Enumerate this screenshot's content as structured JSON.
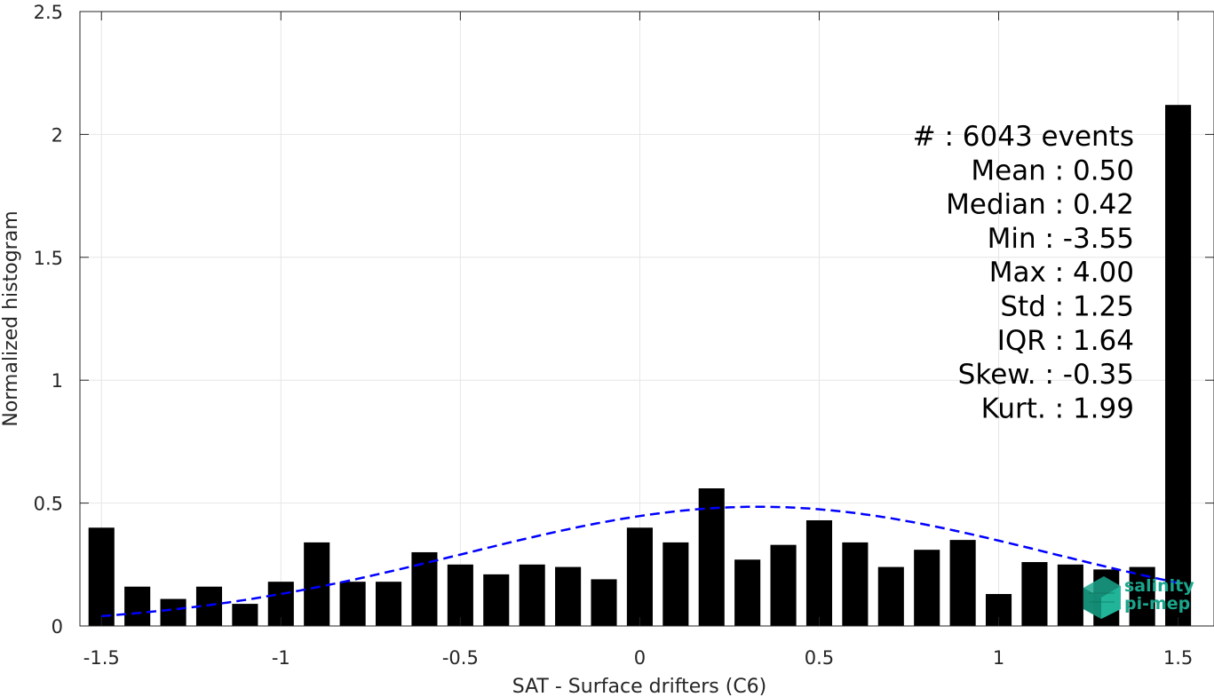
{
  "chart_data": {
    "type": "bar",
    "xlabel": "SAT - Surface drifters (C6)",
    "ylabel": "Normalized histogram",
    "xlim": [
      -1.56,
      1.6
    ],
    "ylim": [
      0,
      2.5
    ],
    "xticks": [
      -1.5,
      -1,
      -0.5,
      0,
      0.5,
      1,
      1.5
    ],
    "xtick_labels": [
      "-1.5",
      "-1",
      "-0.5",
      "0",
      "0.5",
      "1",
      "1.5"
    ],
    "yticks": [
      0,
      0.5,
      1,
      1.5,
      2,
      2.5
    ],
    "ytick_labels": [
      "0",
      "0.5",
      "1",
      "1.5",
      "2",
      "2.5"
    ],
    "grid": true,
    "bin_width": 0.1,
    "bar_color": "#000000",
    "x": [
      -1.5,
      -1.4,
      -1.3,
      -1.2,
      -1.1,
      -1.0,
      -0.9,
      -0.8,
      -0.7,
      -0.6,
      -0.5,
      -0.4,
      -0.3,
      -0.2,
      -0.1,
      0.0,
      0.1,
      0.2,
      0.3,
      0.4,
      0.5,
      0.6,
      0.7,
      0.8,
      0.9,
      1.0,
      1.1,
      1.2,
      1.3,
      1.4,
      1.5
    ],
    "values": [
      0.4,
      0.16,
      0.11,
      0.16,
      0.09,
      0.18,
      0.34,
      0.18,
      0.18,
      0.3,
      0.25,
      0.21,
      0.25,
      0.24,
      0.19,
      0.4,
      0.34,
      0.56,
      0.27,
      0.33,
      0.43,
      0.34,
      0.24,
      0.31,
      0.35,
      0.13,
      0.26,
      0.25,
      0.23,
      0.24,
      2.12
    ],
    "fit_curve": {
      "style": "dashed",
      "color": "#0000ff",
      "mean": 0.33,
      "std": 0.82,
      "peak": 0.485,
      "x_range": [
        -1.5,
        1.5
      ]
    },
    "stats": [
      "#  : 6043 events",
      "Mean : 0.50",
      "Median : 0.42",
      "Min : -3.55",
      "Max : 4.00",
      "Std : 1.25",
      "IQR : 1.64",
      "Skew. : -0.35",
      "Kurt. : 1.99"
    ]
  },
  "logo": {
    "line1": "salinity",
    "line2": "pi-mep",
    "color": "#1aa58c"
  }
}
